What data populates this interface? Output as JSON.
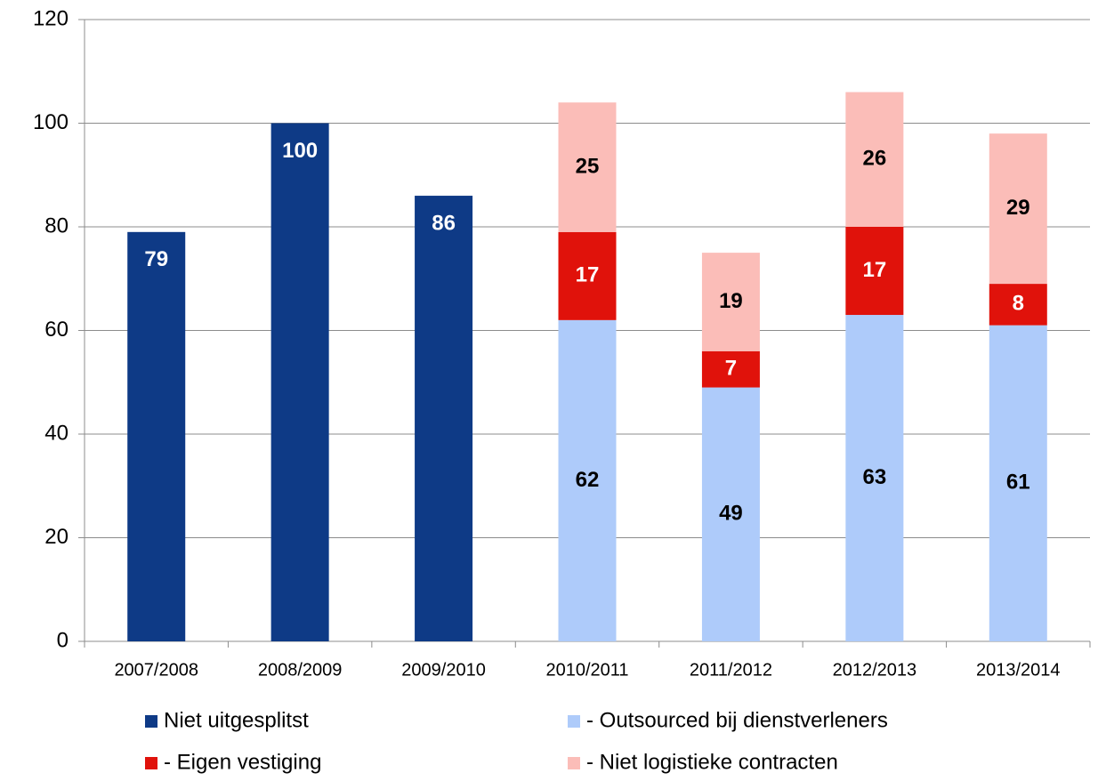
{
  "chart_data": {
    "type": "stacked_bar",
    "categories": [
      "2007/2008",
      "2008/2009",
      "2009/2010",
      "2010/2011",
      "2011/2012",
      "2012/2013",
      "2013/2014"
    ],
    "series": [
      {
        "name": "Niet uitgesplitst",
        "color": "#0e3a86",
        "values": [
          79,
          100,
          86,
          null,
          null,
          null,
          null
        ]
      },
      {
        "name": "- Outsourced bij dienstverleners",
        "color": "#aecbfa",
        "values": [
          null,
          null,
          null,
          62,
          49,
          63,
          61
        ]
      },
      {
        "name": "- Eigen vestiging",
        "color": "#e0120b",
        "values": [
          null,
          null,
          null,
          17,
          7,
          17,
          8
        ]
      },
      {
        "name": "- Niet logistieke contracten",
        "color": "#fbbdb8",
        "values": [
          null,
          null,
          null,
          25,
          19,
          26,
          29
        ]
      }
    ],
    "ylim": [
      0,
      120
    ],
    "yticks": [
      0,
      20,
      40,
      60,
      80,
      100,
      120
    ],
    "grid": true,
    "legend": "bottom"
  }
}
